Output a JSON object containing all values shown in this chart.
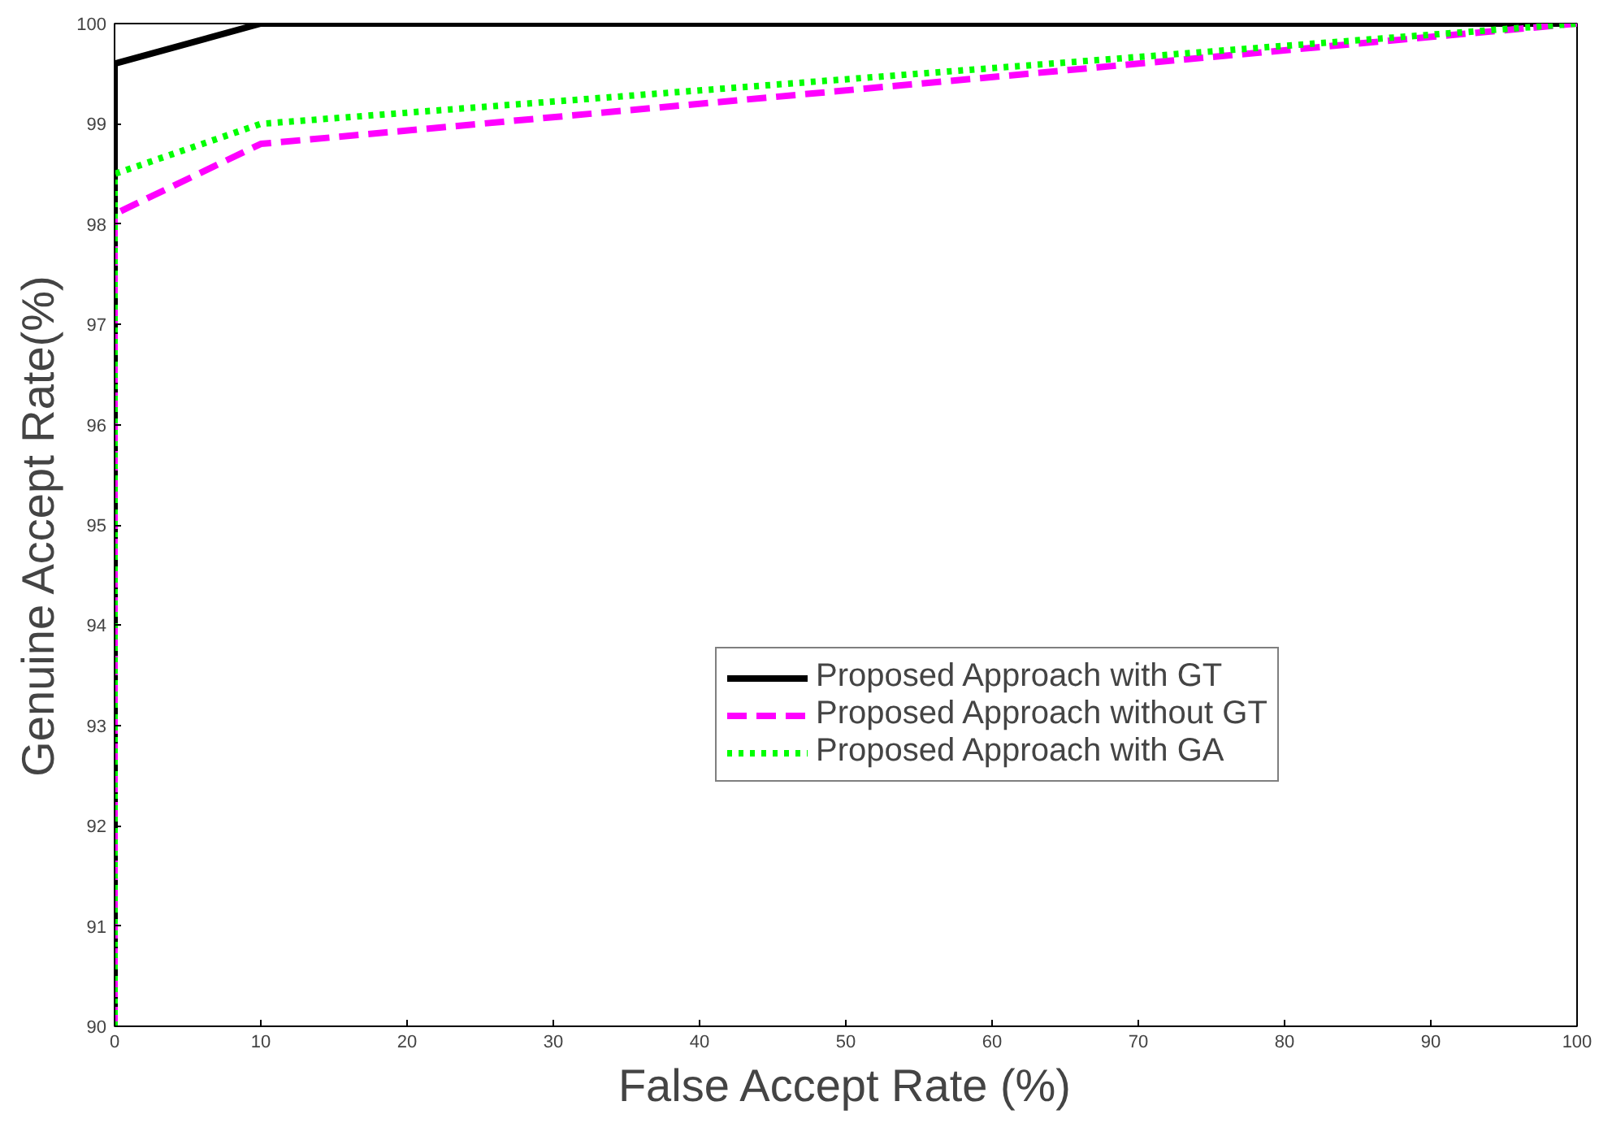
{
  "chart_data": {
    "type": "line",
    "xlabel": "False Accept Rate (%)",
    "ylabel": "Genuine Accept Rate(%)",
    "xlim": [
      0,
      100
    ],
    "ylim": [
      90,
      100
    ],
    "xticks": [
      0,
      10,
      20,
      30,
      40,
      50,
      60,
      70,
      80,
      90,
      100
    ],
    "yticks": [
      90,
      91,
      92,
      93,
      94,
      95,
      96,
      97,
      98,
      99,
      100
    ],
    "grid": false,
    "legend": "right",
    "marker": "none",
    "series": [
      {
        "name": "Proposed Approach with GT",
        "color": "#000000",
        "line_style": "solid",
        "x": [
          0,
          0,
          10,
          100
        ],
        "values": [
          90,
          99.6,
          100,
          100
        ]
      },
      {
        "name": "Proposed Approach without GT",
        "color": "#ff00ff",
        "line_style": "dashed",
        "x": [
          0,
          0,
          10,
          100
        ],
        "values": [
          90,
          98.1,
          98.8,
          100
        ]
      },
      {
        "name": "Proposed Approach with GA",
        "color": "#00ff00",
        "line_style": "dotted",
        "x": [
          0,
          0,
          10,
          100
        ],
        "values": [
          90,
          98.5,
          99.0,
          100
        ]
      }
    ]
  }
}
